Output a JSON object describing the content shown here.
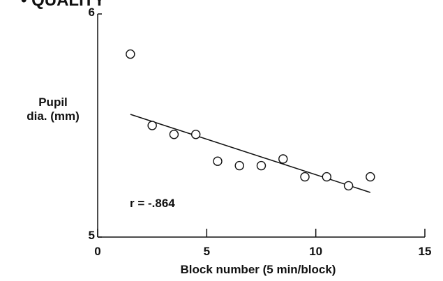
{
  "header_fragment": "• QUALITY",
  "chart_data": {
    "type": "scatter",
    "title": "",
    "xlabel": "Block number (5 min/block)",
    "ylabel": [
      "Pupil",
      "dia. (mm)"
    ],
    "xlim": [
      0,
      15
    ],
    "ylim": [
      5,
      6
    ],
    "xticks": [
      0,
      5,
      10,
      15
    ],
    "yticks": [
      5,
      6
    ],
    "grid": false,
    "series": [
      {
        "points": [
          {
            "x": 1.5,
            "y": 5.82
          },
          {
            "x": 2.5,
            "y": 5.5
          },
          {
            "x": 3.5,
            "y": 5.46
          },
          {
            "x": 4.5,
            "y": 5.46
          },
          {
            "x": 5.5,
            "y": 5.34
          },
          {
            "x": 6.5,
            "y": 5.32
          },
          {
            "x": 7.5,
            "y": 5.32
          },
          {
            "x": 8.5,
            "y": 5.35
          },
          {
            "x": 9.5,
            "y": 5.27
          },
          {
            "x": 10.5,
            "y": 5.27
          },
          {
            "x": 11.5,
            "y": 5.23
          },
          {
            "x": 12.5,
            "y": 5.27
          }
        ]
      }
    ],
    "fit_line": {
      "x0": 1.5,
      "y0": 5.55,
      "x1": 12.5,
      "y1": 5.2
    },
    "annotation": "r = -.864"
  }
}
